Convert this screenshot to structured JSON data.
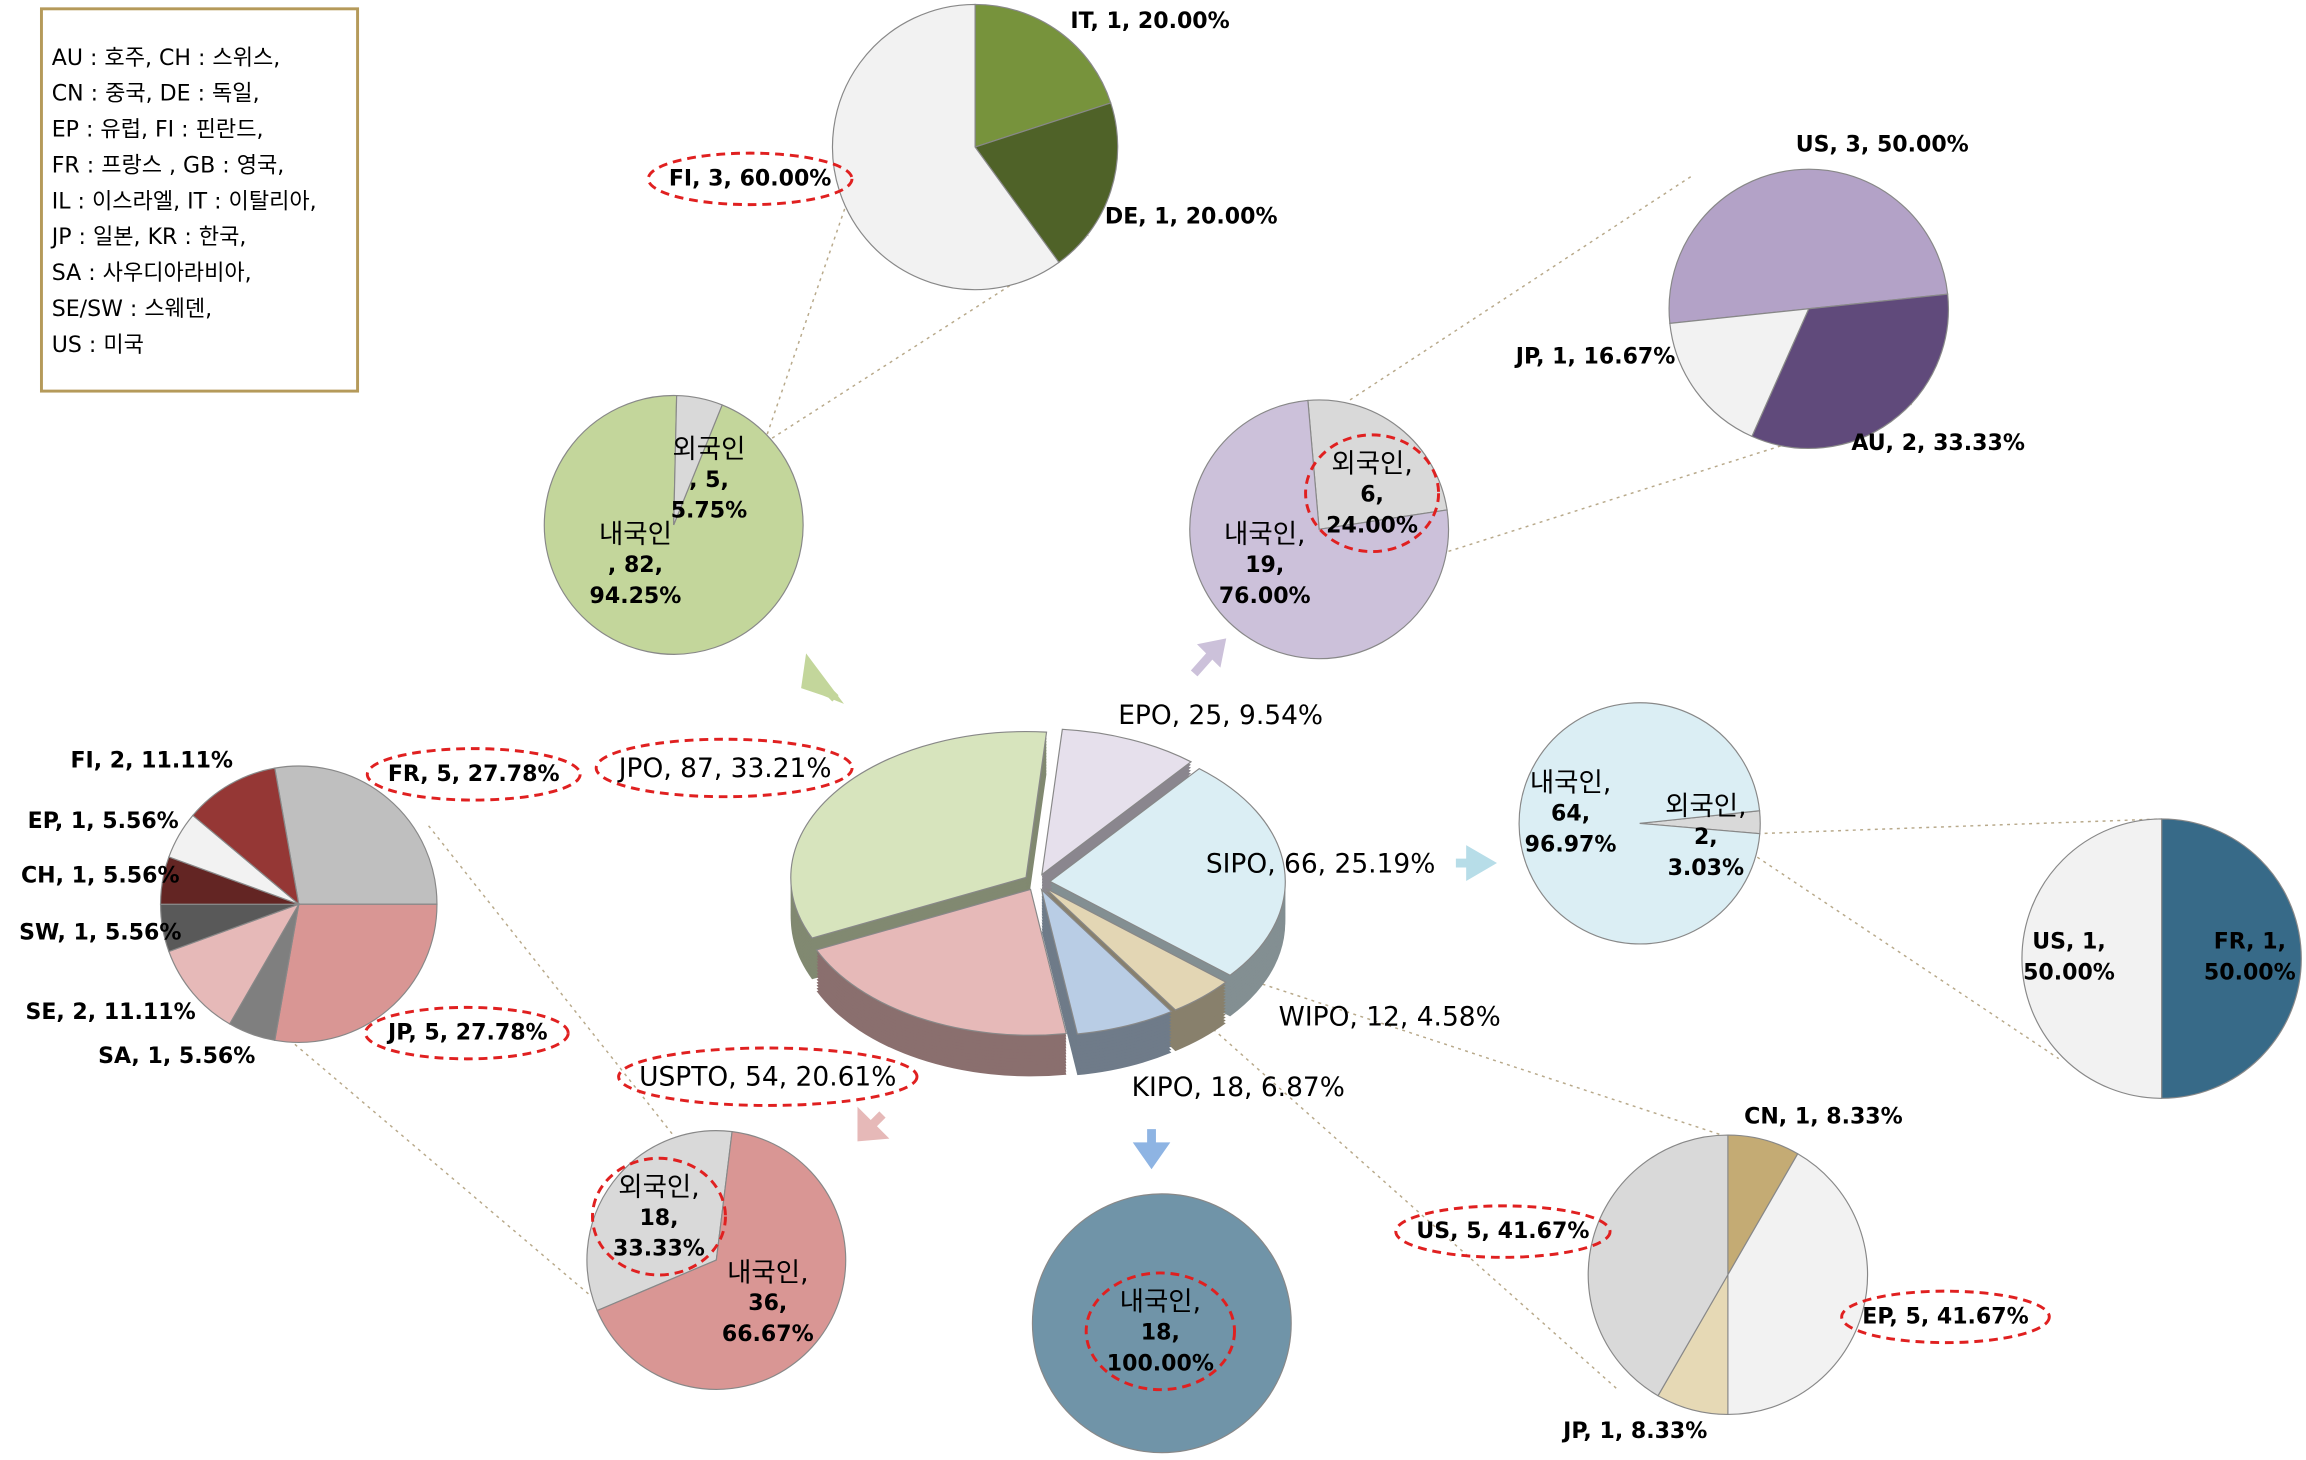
{
  "note": [
    "AU : 호주,  CH : 스위스,",
    "CN :  중국,  DE :  독일,",
    "EP : 유럽,  FI : 핀란드,",
    "FR : 프랑스 ,  GB :  영국,",
    "IL :  이스라엘,  IT : 이탈리아,",
    "JP :  일본,  KR : 한국,",
    "SA : 사우디아라비아,",
    "SE/SW :  스웨덴,",
    "US :  미국"
  ],
  "chart_data": [
    {
      "type": "pie",
      "three_d": true,
      "values": [
        25,
        66,
        12,
        18,
        54,
        87
      ],
      "value_labels": [
        "EPO, 25, 9.54%",
        "SIPO, 66, 25.19%",
        "WIPO, 12, 4.58%",
        "KIPO, 18, 6.87%",
        "USPTO, 54, 20.61%",
        "JPO, 87, 33.21%"
      ],
      "colors": [
        "#e6e0ec",
        "#dbeef4",
        "#e3d6b4",
        "#b9cde5",
        "#e6b9b8",
        "#d7e4bd"
      ],
      "highlight": [
        4,
        5
      ]
    },
    {
      "type": "pie",
      "values": [
        82,
        5
      ],
      "value_labels": [
        "내국인\n, 82,\n94.25%",
        "외국인\n, 5,\n5.75%"
      ],
      "colors": [
        "#c3d69b",
        "#d9d9d9"
      ],
      "highlight": []
    },
    {
      "type": "pie",
      "values": [
        1,
        1,
        3
      ],
      "value_labels": [
        "IT, 1, 20.00%",
        "DE, 1, 20.00%",
        "FI, 3, 60.00%"
      ],
      "colors": [
        "#77933c",
        "#4f6228",
        "#f2f2f2"
      ],
      "highlight": [
        2
      ]
    },
    {
      "type": "pie",
      "values": [
        6,
        19
      ],
      "value_labels": [
        "외국인,\n6,\n24.00%",
        "내국인,\n19,\n76.00%"
      ],
      "colors": [
        "#d9d9d9",
        "#ccc1da"
      ],
      "highlight": [
        0
      ]
    },
    {
      "type": "pie",
      "values": [
        3,
        2,
        1
      ],
      "value_labels": [
        "US, 3, 50.00%",
        "AU, 2, 33.33%",
        "JP, 1, 16.67%"
      ],
      "colors": [
        "#b3a2c7",
        "#604a7b",
        "#f2f2f2"
      ],
      "highlight": []
    },
    {
      "type": "pie",
      "values": [
        2,
        64
      ],
      "value_labels": [
        "외국인,\n2,\n3.03%",
        "내국인,\n64,\n96.97%"
      ],
      "colors": [
        "#d9d9d9",
        "#dbeef4"
      ],
      "highlight": []
    },
    {
      "type": "pie",
      "values": [
        1,
        1
      ],
      "value_labels": [
        "FR, 1,\n50.00%",
        "US, 1,\n50.00%"
      ],
      "colors": [
        "#376a88",
        "#f2f2f2"
      ],
      "highlight": []
    },
    {
      "type": "pie",
      "values": [
        1,
        5,
        1,
        5
      ],
      "value_labels": [
        "CN, 1, 8.33%",
        "EP, 5, 41.67%",
        "JP, 1, 8.33%",
        "US, 5, 41.67%"
      ],
      "colors": [
        "#c4ab74",
        "#f2f2f2",
        "#e6d9b5",
        "#d9d9d9"
      ],
      "highlight": [
        1,
        3
      ]
    },
    {
      "type": "pie",
      "values": [
        18
      ],
      "value_labels": [
        "내국인,\n18,\n100.00%"
      ],
      "colors": [
        "#7094a8"
      ],
      "highlight": [
        0
      ]
    },
    {
      "type": "pie",
      "values": [
        18,
        36
      ],
      "value_labels": [
        "외국인,\n18,\n33.33%",
        "내국인,\n36,\n66.67%"
      ],
      "colors": [
        "#d9d9d9",
        "#d99694"
      ],
      "highlight": [
        0
      ]
    },
    {
      "type": "pie",
      "values": [
        5,
        5,
        1,
        2,
        1,
        1,
        1,
        2
      ],
      "value_labels": [
        "FR, 5, 27.78%",
        "JP, 5, 27.78%",
        "SA, 1, 5.56%",
        "SE, 2, 11.11%",
        "SW, 1, 5.56%",
        "CH, 1, 5.56%",
        "EP, 1, 5.56%",
        "FI, 2, 11.11%"
      ],
      "colors": [
        "#bfbfbf",
        "#d99694",
        "#7f7f7f",
        "#e6b9b8",
        "#595959",
        "#632523",
        "#f2f2f2",
        "#953735"
      ],
      "highlight": [
        0,
        1
      ]
    }
  ]
}
